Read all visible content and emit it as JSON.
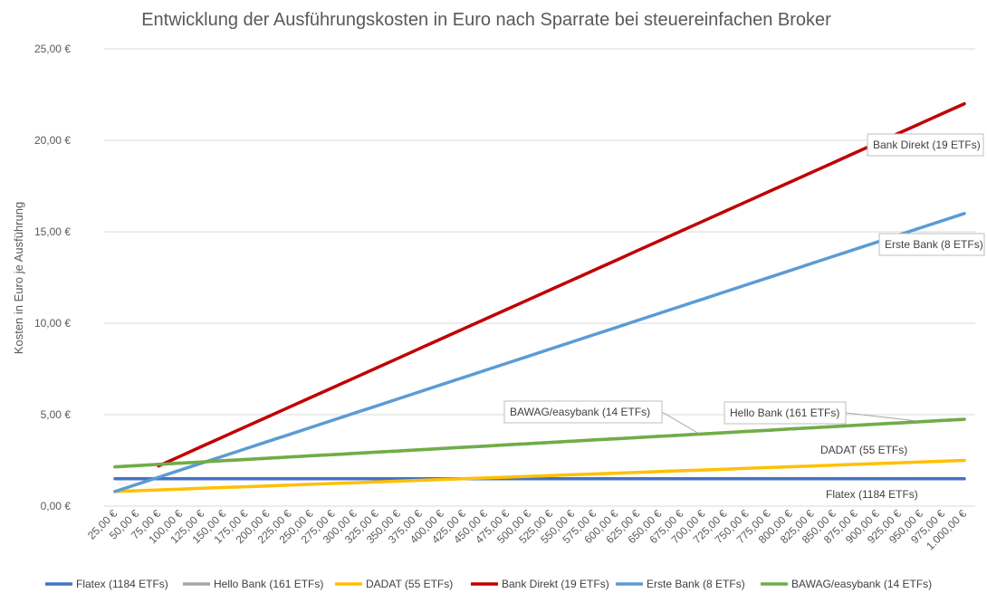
{
  "chart_data": {
    "type": "line",
    "title": "Entwicklung der Ausführungskosten in Euro nach Sparrate bei steuereinfachen Broker",
    "ylabel": "Kosten in Euro je Ausführung",
    "xlabel": "",
    "ylim": [
      0,
      25
    ],
    "yticks": [
      0,
      5,
      10,
      15,
      20,
      25
    ],
    "ytick_labels": [
      "0,00 €",
      "5,00 €",
      "10,00 €",
      "15,00 €",
      "20,00 €",
      "25,00 €"
    ],
    "categories": [
      "25,00 €",
      "50,00 €",
      "75,00 €",
      "100,00 €",
      "125,00 €",
      "150,00 €",
      "175,00 €",
      "200,00 €",
      "225,00 €",
      "250,00 €",
      "275,00 €",
      "300,00 €",
      "325,00 €",
      "350,00 €",
      "375,00 €",
      "400,00 €",
      "425,00 €",
      "450,00 €",
      "475,00 €",
      "500,00 €",
      "525,00 €",
      "550,00 €",
      "575,00 €",
      "600,00 €",
      "625,00 €",
      "650,00 €",
      "675,00 €",
      "700,00 €",
      "725,00 €",
      "750,00 €",
      "775,00 €",
      "800,00 €",
      "825,00 €",
      "850,00 €",
      "875,00 €",
      "900,00 €",
      "925,00 €",
      "950,00 €",
      "975,00 €",
      "1.000,00 €"
    ],
    "grid": true,
    "legend_position": "bottom",
    "series": [
      {
        "name": "Flatex (1184 ETFs)",
        "color": "#4472C4",
        "start": 1.5,
        "end": 1.5,
        "start_index": 0
      },
      {
        "name": "Hello Bank (161 ETFs)",
        "color": "#A5A5A5",
        "start": 2.15,
        "end": 4.75,
        "start_index": 0
      },
      {
        "name": "DADAT (55 ETFs)",
        "color": "#FFC000",
        "start": 0.8,
        "end": 2.5,
        "start_index": 0
      },
      {
        "name": "Bank Direkt (19 ETFs)",
        "color": "#C00000",
        "start": 2.2,
        "end": 22.0,
        "start_index": 2
      },
      {
        "name": "Erste Bank (8 ETFs)",
        "color": "#5B9BD5",
        "start": 0.8,
        "end": 16.0,
        "start_index": 0
      },
      {
        "name": "BAWAG/easybank (14 ETFs)",
        "color": "#70AD47",
        "start": 2.15,
        "end": 4.75,
        "start_index": 0
      }
    ],
    "annotations": [
      {
        "text": "Bank Direkt (19 ETFs)",
        "boxed": true
      },
      {
        "text": "Erste Bank (8 ETFs)",
        "boxed": true
      },
      {
        "text": "BAWAG/easybank (14 ETFs)",
        "boxed": true
      },
      {
        "text": "Hello Bank (161 ETFs)",
        "boxed": true
      },
      {
        "text": "DADAT (55 ETFs)",
        "boxed": false
      },
      {
        "text": "Flatex (1184 ETFs)",
        "boxed": false
      }
    ]
  }
}
